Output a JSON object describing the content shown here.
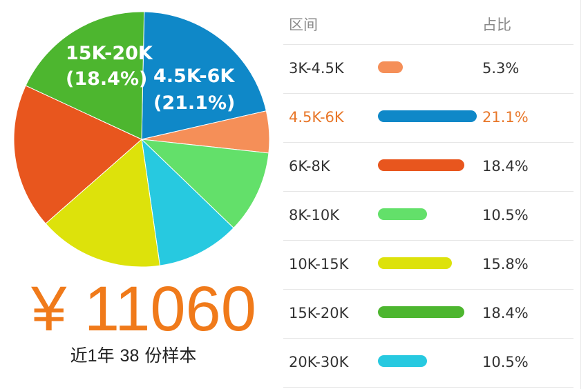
{
  "chart_data": {
    "type": "pie",
    "slices": [
      {
        "label": "3K-4.5K",
        "value": 5.3,
        "pct_label": "5.3%",
        "color": "#f58f58"
      },
      {
        "label": "4.5K-6K",
        "value": 21.1,
        "pct_label": "21.1%",
        "color": "#0f88c8",
        "highlight": true
      },
      {
        "label": "6K-8K",
        "value": 18.4,
        "pct_label": "18.4%",
        "color": "#e8561e"
      },
      {
        "label": "8K-10K",
        "value": 10.5,
        "pct_label": "10.5%",
        "color": "#63e06a"
      },
      {
        "label": "10K-15K",
        "value": 15.8,
        "pct_label": "15.8%",
        "color": "#dde20b"
      },
      {
        "label": "15K-20K",
        "value": 18.4,
        "pct_label": "18.4%",
        "color": "#4db62f"
      },
      {
        "label": "20K-30K",
        "value": 10.5,
        "pct_label": "10.5%",
        "color": "#27c9e0"
      }
    ],
    "pie_slice_order": [
      "4.5K-6K",
      "3K-4.5K",
      "8K-10K",
      "20K-30K",
      "10K-15K",
      "6K-8K",
      "15K-20K"
    ],
    "pie_labels": [
      {
        "slice": "15K-20K",
        "line1": "15K-20K",
        "line2": "(18.4%)"
      },
      {
        "slice": "4.5K-6K",
        "line1": "4.5K-6K",
        "line2": "(21.1%)"
      }
    ]
  },
  "summary": {
    "price": "¥ 11060",
    "prefix": "近",
    "period_num": "1",
    "period_unit": "年",
    "sample_count": "38",
    "sample_unit": "份样本"
  },
  "table": {
    "header_range": "区间",
    "header_ratio": "占比"
  }
}
